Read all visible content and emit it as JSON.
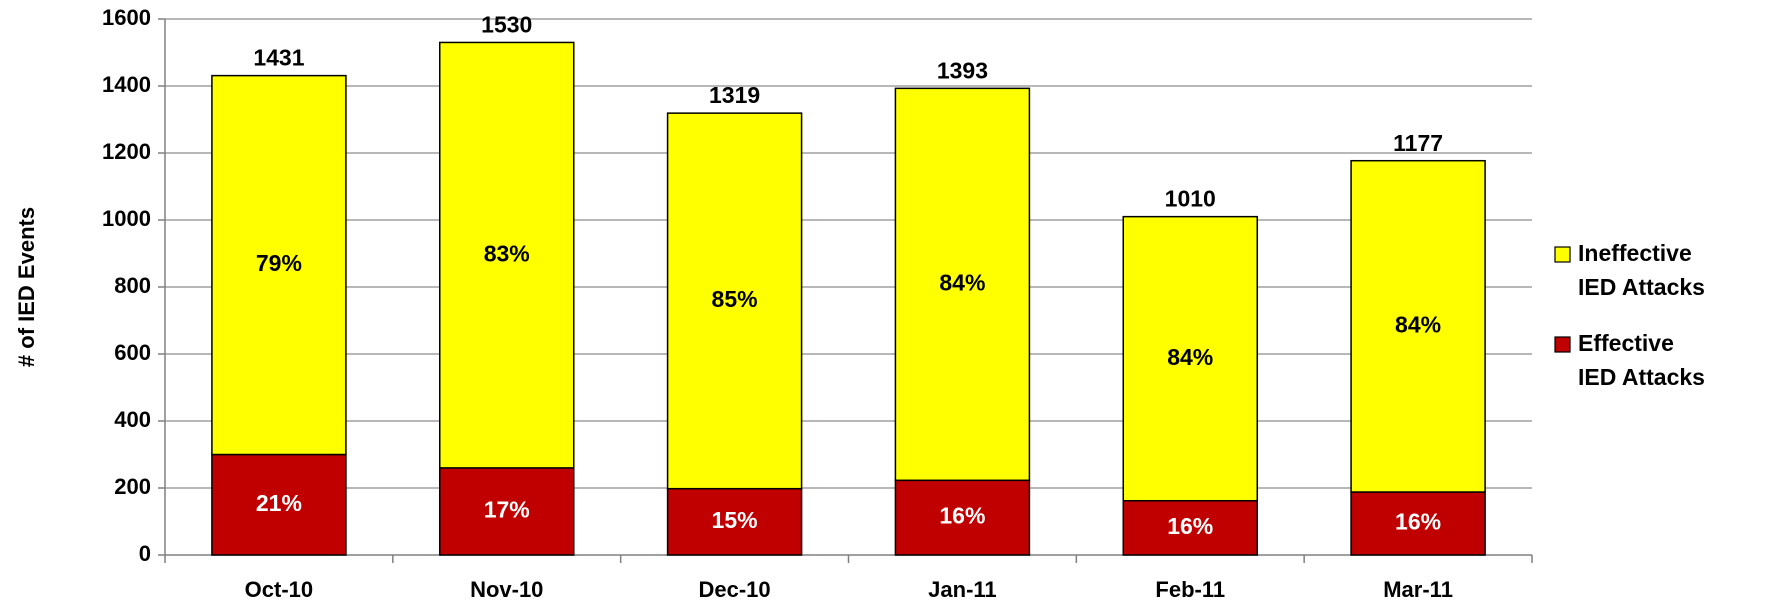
{
  "chart_data": {
    "type": "stacked_bar",
    "ylabel": "# of IED Events",
    "categories": [
      "Oct-10",
      "Nov-10",
      "Dec-10",
      "Jan-11",
      "Feb-11",
      "Mar-11"
    ],
    "series": [
      {
        "name": "Effective IED Attacks",
        "color": "#c00000",
        "values": [
          300,
          260,
          198,
          223,
          162,
          188
        ],
        "annotations": [
          "21%",
          "17%",
          "15%",
          "16%",
          "16%",
          "16%"
        ]
      },
      {
        "name": "Ineffective IED Attacks",
        "color": "#ffff00",
        "values": [
          1131,
          1270,
          1121,
          1170,
          848,
          989
        ],
        "annotations": [
          "79%",
          "83%",
          "85%",
          "84%",
          "84%",
          "84%"
        ]
      }
    ],
    "totals": [
      1431,
      1530,
      1319,
      1393,
      1010,
      1177
    ],
    "ylim": [
      0,
      1600
    ],
    "yticks": [
      0,
      200,
      400,
      600,
      800,
      1000,
      1200,
      1400,
      1600
    ],
    "grid": true,
    "legend": "right"
  }
}
